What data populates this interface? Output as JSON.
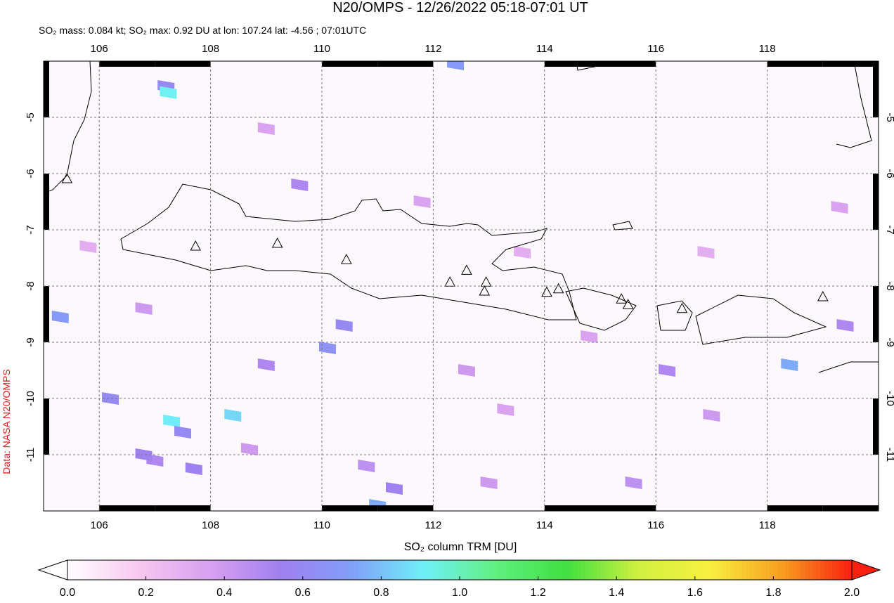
{
  "chart_data": {
    "type": "map",
    "title": "N20/OMPS - 12/26/2022 05:18-07:01 UT",
    "subtitle": "SO₂ mass: 0.084 kt; SO₂ max: 0.92 DU at lon: 107.24 lat: -4.56 ; 07:01UTC",
    "credit": "Data: NASA N20/OMPS",
    "xlim": [
      105,
      120
    ],
    "ylim": [
      -12,
      -4
    ],
    "xticks": [
      106,
      108,
      110,
      112,
      114,
      116,
      118
    ],
    "yticks": [
      -5,
      -6,
      -7,
      -8,
      -9,
      -10,
      -11
    ],
    "grid": true,
    "colorbar": {
      "label": "SO₂ column TRM [DU]",
      "lim": [
        0,
        2
      ],
      "ticks": [
        {
          "value": 0,
          "label": "0.0"
        },
        {
          "value": 0.2,
          "label": "0.2"
        },
        {
          "value": 0.4,
          "label": "0.4"
        },
        {
          "value": 0.6,
          "label": "0.6"
        },
        {
          "value": 0.8,
          "label": "0.8"
        },
        {
          "value": 1,
          "label": "1.0"
        },
        {
          "value": 1.2,
          "label": "1.2"
        },
        {
          "value": 1.4,
          "label": "1.4"
        },
        {
          "value": 1.6,
          "label": "1.6"
        },
        {
          "value": 1.8,
          "label": "1.8"
        },
        {
          "value": 2,
          "label": "2.0"
        }
      ],
      "colors": [
        "#ffffff",
        "#f8c8f0",
        "#d8a0f0",
        "#a080f0",
        "#80a0f8",
        "#70f0f8",
        "#60f080",
        "#40e040",
        "#d0f040",
        "#f8f040",
        "#f8a020",
        "#f82010"
      ]
    },
    "pixels": {
      "lon": [
        107.2,
        107.24,
        109.6,
        110.4,
        110.1,
        111.0,
        111.3,
        107.3,
        107.5,
        108.4,
        107.0,
        106.8,
        105.3,
        107.7,
        112.4,
        118.4,
        116.2,
        106.2,
        109.0,
        113.0,
        110.8,
        112.6,
        114.8,
        117.0,
        119.4,
        115.6,
        108.7,
        111.8,
        113.6,
        109.0,
        105.8,
        116.9,
        119.3,
        106.8,
        113.3
      ],
      "lat": [
        -4.45,
        -4.56,
        -6.2,
        -8.7,
        -9.1,
        -11.9,
        -11.6,
        -10.4,
        -10.6,
        -10.3,
        -11.1,
        -11.0,
        -8.55,
        -11.25,
        -4.05,
        -9.4,
        -9.5,
        -10.0,
        -9.4,
        -11.5,
        -11.2,
        -9.5,
        -8.9,
        -10.3,
        -8.7,
        -11.5,
        -10.9,
        -6.5,
        -7.4,
        -5.2,
        -7.3,
        -7.4,
        -6.6,
        -8.4,
        -10.2
      ],
      "values": [
        0.6,
        0.92,
        0.5,
        0.6,
        0.65,
        0.75,
        0.55,
        0.9,
        0.6,
        0.85,
        0.5,
        0.55,
        0.7,
        0.55,
        0.7,
        0.75,
        0.5,
        0.6,
        0.5,
        0.4,
        0.45,
        0.4,
        0.35,
        0.4,
        0.5,
        0.45,
        0.4,
        0.35,
        0.3,
        0.35,
        0.3,
        0.3,
        0.35,
        0.4,
        0.35
      ]
    },
    "volcanoes": {
      "lon": [
        105.42,
        107.73,
        109.2,
        110.44,
        112.3,
        112.6,
        112.95,
        112.92,
        114.04,
        114.25,
        115.38,
        115.5,
        116.47,
        119.0
      ],
      "lat": [
        -6.1,
        -7.3,
        -7.25,
        -7.54,
        -7.94,
        -7.73,
        -7.94,
        -8.1,
        -8.12,
        -8.06,
        -8.24,
        -8.34,
        -8.41,
        -8.2
      ]
    }
  }
}
